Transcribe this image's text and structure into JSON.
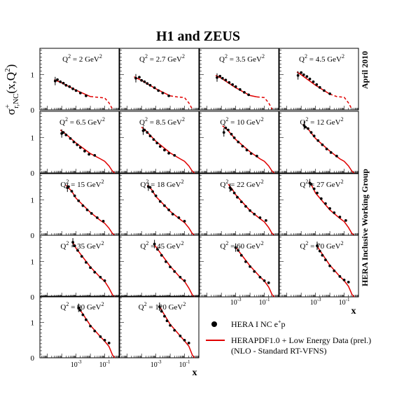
{
  "chart_data": {
    "type": "scatter",
    "title": "H1 and ZEUS",
    "ylabel_main": "σ",
    "ylabel_sup": "+",
    "ylabel_sub": "r,NC",
    "ylabel_rest": "(x,Q",
    "ylabel_exp": "2",
    "ylabel_close": ")",
    "xlabel": "x",
    "right_label_top": "April 2010",
    "right_label_bottom": "HERA Inclusive Working Group",
    "x_axis": {
      "scale": "log",
      "range": [
        3e-06,
        1.0
      ],
      "tick_labels": [
        "10",
        "10"
      ],
      "tick_exponents": [
        "-3",
        "-1"
      ],
      "tick_values": [
        0.001,
        0.1
      ]
    },
    "y_axis": {
      "range": [
        0,
        1.75
      ],
      "tick_labels": [
        "0",
        "1"
      ]
    },
    "legend": {
      "placement": "bottom-right",
      "data_label_main": "HERA I NC e",
      "data_label_sup": "+",
      "data_label_end": "p",
      "fit_label_line1": "HERAPDF1.0 + Low Energy Data (prel.)",
      "fit_label_line2": "(NLO  -  Standard RT-VFNS)"
    },
    "colors": {
      "fit": "#e00000",
      "data": "#000000",
      "frame": "#000000"
    },
    "panel_label_prefix": "Q",
    "panel_label_exp": "2",
    "panel_label_eq": " = ",
    "panel_unit": " GeV",
    "panel_unit_exp": "2",
    "panels": [
      {
        "q2": "2",
        "data": [
          [
            3.5e-05,
            0.82
          ],
          [
            5e-05,
            0.86
          ],
          [
            8e-05,
            0.8
          ],
          [
            0.00013,
            0.76
          ],
          [
            0.0002,
            0.7
          ],
          [
            0.00035,
            0.66
          ],
          [
            0.0006,
            0.6
          ],
          [
            0.001,
            0.55
          ],
          [
            0.002,
            0.48
          ],
          [
            0.005,
            0.4
          ]
        ],
        "fit_x": [
          3e-05,
          0.0001,
          0.001,
          0.01,
          0.03,
          0.1,
          0.2,
          0.35
        ],
        "fit_y": [
          0.86,
          0.77,
          0.56,
          0.38,
          0.36,
          0.34,
          0.2,
          0.02
        ],
        "fit_solid_to": 0.01
      },
      {
        "q2": "2.7",
        "data": [
          [
            4e-05,
            0.9
          ],
          [
            7e-05,
            0.93
          ],
          [
            0.0001,
            0.84
          ],
          [
            0.00016,
            0.8
          ],
          [
            0.00025,
            0.75
          ],
          [
            0.0004,
            0.7
          ],
          [
            0.0008,
            0.63
          ],
          [
            0.0015,
            0.55
          ],
          [
            0.003,
            0.48
          ],
          [
            0.008,
            0.4
          ]
        ],
        "fit_x": [
          3e-05,
          0.0001,
          0.001,
          0.01,
          0.03,
          0.1,
          0.2,
          0.35
        ],
        "fit_y": [
          0.94,
          0.84,
          0.6,
          0.4,
          0.37,
          0.35,
          0.2,
          0.02
        ],
        "fit_solid_to": 0.01
      },
      {
        "q2": "3.5",
        "data": [
          [
            5e-05,
            0.92
          ],
          [
            8e-05,
            0.96
          ],
          [
            0.00012,
            0.9
          ],
          [
            0.0002,
            0.85
          ],
          [
            0.00035,
            0.78
          ],
          [
            0.0006,
            0.72
          ],
          [
            0.001,
            0.66
          ],
          [
            0.002,
            0.58
          ],
          [
            0.004,
            0.5
          ],
          [
            0.008,
            0.43
          ]
        ],
        "fit_x": [
          4e-05,
          0.0001,
          0.001,
          0.01,
          0.03,
          0.1,
          0.2,
          0.35
        ],
        "fit_y": [
          0.98,
          0.9,
          0.63,
          0.41,
          0.37,
          0.35,
          0.2,
          0.02
        ],
        "fit_solid_to": 0.03
      },
      {
        "q2": "4.5",
        "data": [
          [
            6e-05,
            0.98
          ],
          [
            0.0001,
            1.06
          ],
          [
            0.00015,
            1.0
          ],
          [
            0.00025,
            0.95
          ],
          [
            0.0004,
            0.88
          ],
          [
            0.0007,
            0.8
          ],
          [
            0.0012,
            0.72
          ],
          [
            0.002,
            0.64
          ],
          [
            0.004,
            0.55
          ],
          [
            0.01,
            0.46
          ]
        ],
        "fit_x": [
          5e-05,
          0.0001,
          0.001,
          0.01,
          0.03,
          0.1,
          0.2,
          0.35
        ],
        "fit_y": [
          1.08,
          1.0,
          0.7,
          0.45,
          0.38,
          0.36,
          0.2,
          0.02
        ],
        "fit_solid_to": 0.01
      },
      {
        "q2": "6.5",
        "data": [
          [
            0.0001,
            1.12
          ],
          [
            0.00013,
            1.15
          ],
          [
            0.0002,
            1.08
          ],
          [
            0.0004,
            0.98
          ],
          [
            0.0007,
            0.88
          ],
          [
            0.0012,
            0.8
          ],
          [
            0.002,
            0.72
          ],
          [
            0.004,
            0.62
          ],
          [
            0.008,
            0.53
          ],
          [
            0.02,
            0.5
          ]
        ],
        "fit_x": [
          8e-05,
          0.0002,
          0.001,
          0.01,
          0.05,
          0.1,
          0.2,
          0.35,
          0.5
        ],
        "fit_y": [
          1.22,
          1.1,
          0.85,
          0.55,
          0.4,
          0.33,
          0.2,
          0.05,
          0.0
        ]
      },
      {
        "q2": "8.5",
        "data": [
          [
            0.00013,
            1.2
          ],
          [
            0.00016,
            1.22
          ],
          [
            0.00025,
            1.15
          ],
          [
            0.0004,
            1.05
          ],
          [
            0.0007,
            0.95
          ],
          [
            0.0012,
            0.85
          ],
          [
            0.002,
            0.75
          ],
          [
            0.004,
            0.65
          ],
          [
            0.008,
            0.56
          ],
          [
            0.02,
            0.5
          ]
        ],
        "fit_x": [
          0.0001,
          0.0002,
          0.001,
          0.01,
          0.05,
          0.1,
          0.2,
          0.35,
          0.5
        ],
        "fit_y": [
          1.3,
          1.2,
          0.9,
          0.57,
          0.4,
          0.33,
          0.2,
          0.05,
          0.0
        ]
      },
      {
        "q2": "10",
        "data": [
          [
            0.00015,
            1.15
          ],
          [
            0.0002,
            1.28
          ],
          [
            0.0003,
            1.22
          ],
          [
            0.0005,
            1.1
          ],
          [
            0.0008,
            1.0
          ],
          [
            0.0015,
            0.88
          ],
          [
            0.003,
            0.76
          ],
          [
            0.006,
            0.65
          ],
          [
            0.012,
            0.55
          ],
          [
            0.03,
            0.48
          ]
        ],
        "fit_x": [
          0.00012,
          0.0003,
          0.001,
          0.01,
          0.05,
          0.1,
          0.2,
          0.35,
          0.5
        ],
        "fit_y": [
          1.34,
          1.2,
          0.95,
          0.6,
          0.4,
          0.33,
          0.2,
          0.05,
          0.0
        ]
      },
      {
        "q2": "12",
        "data": [
          [
            0.00016,
            1.35
          ],
          [
            0.0002,
            1.3
          ],
          [
            0.0003,
            1.26
          ],
          [
            0.0005,
            1.15
          ],
          [
            0.0008,
            1.05
          ],
          [
            0.0015,
            0.92
          ],
          [
            0.003,
            0.8
          ],
          [
            0.006,
            0.68
          ],
          [
            0.012,
            0.58
          ],
          [
            0.03,
            0.48
          ]
        ],
        "fit_x": [
          0.00013,
          0.0003,
          0.001,
          0.01,
          0.05,
          0.1,
          0.2,
          0.35,
          0.5
        ],
        "fit_y": [
          1.38,
          1.25,
          0.98,
          0.62,
          0.4,
          0.33,
          0.2,
          0.05,
          0.0
        ]
      },
      {
        "q2": "15",
        "data": [
          [
            0.00025,
            1.35
          ],
          [
            0.0003,
            1.38
          ],
          [
            0.0005,
            1.25
          ],
          [
            0.0008,
            1.12
          ],
          [
            0.0015,
            0.98
          ],
          [
            0.003,
            0.84
          ],
          [
            0.006,
            0.72
          ],
          [
            0.012,
            0.62
          ],
          [
            0.03,
            0.5
          ],
          [
            0.08,
            0.4
          ]
        ],
        "fit_x": [
          0.0002,
          0.0005,
          0.001,
          0.01,
          0.05,
          0.1,
          0.2,
          0.35,
          0.5
        ],
        "fit_y": [
          1.42,
          1.25,
          1.05,
          0.65,
          0.42,
          0.34,
          0.2,
          0.05,
          0.0
        ]
      },
      {
        "q2": "18",
        "data": [
          [
            0.0003,
            1.38
          ],
          [
            0.0004,
            1.36
          ],
          [
            0.0006,
            1.24
          ],
          [
            0.001,
            1.12
          ],
          [
            0.002,
            0.96
          ],
          [
            0.004,
            0.84
          ],
          [
            0.008,
            0.72
          ],
          [
            0.015,
            0.6
          ],
          [
            0.04,
            0.5
          ],
          [
            0.1,
            0.4
          ]
        ],
        "fit_x": [
          0.00025,
          0.0005,
          0.001,
          0.01,
          0.05,
          0.1,
          0.2,
          0.35,
          0.5
        ],
        "fit_y": [
          1.42,
          1.3,
          1.1,
          0.68,
          0.45,
          0.36,
          0.21,
          0.05,
          0.0
        ]
      },
      {
        "q2": "22",
        "data": [
          [
            0.0004,
            1.35
          ],
          [
            0.0005,
            1.3
          ],
          [
            0.0008,
            1.2
          ],
          [
            0.0013,
            1.08
          ],
          [
            0.0025,
            0.95
          ],
          [
            0.005,
            0.82
          ],
          [
            0.01,
            0.7
          ],
          [
            0.02,
            0.6
          ],
          [
            0.05,
            0.5
          ],
          [
            0.13,
            0.42
          ]
        ],
        "fit_x": [
          0.0003,
          0.0006,
          0.001,
          0.01,
          0.05,
          0.1,
          0.2,
          0.35,
          0.5
        ],
        "fit_y": [
          1.45,
          1.3,
          1.15,
          0.7,
          0.47,
          0.38,
          0.22,
          0.05,
          0.0
        ]
      },
      {
        "q2": "27",
        "data": [
          [
            0.0004,
            1.48
          ],
          [
            0.0005,
            1.45
          ],
          [
            0.0008,
            1.32
          ],
          [
            0.0013,
            1.2
          ],
          [
            0.0025,
            1.04
          ],
          [
            0.005,
            0.9
          ],
          [
            0.01,
            0.76
          ],
          [
            0.02,
            0.64
          ],
          [
            0.05,
            0.52
          ],
          [
            0.13,
            0.42
          ]
        ],
        "fit_x": [
          0.00035,
          0.0006,
          0.001,
          0.01,
          0.05,
          0.1,
          0.2,
          0.35,
          0.5
        ],
        "fit_y": [
          1.52,
          1.38,
          1.2,
          0.72,
          0.48,
          0.39,
          0.22,
          0.05,
          0.0
        ]
      },
      {
        "q2": "35",
        "data": [
          [
            0.0006,
            1.55
          ],
          [
            0.0008,
            1.45
          ],
          [
            0.0013,
            1.32
          ],
          [
            0.0025,
            1.15
          ],
          [
            0.005,
            0.98
          ],
          [
            0.01,
            0.83
          ],
          [
            0.02,
            0.7
          ],
          [
            0.05,
            0.56
          ],
          [
            0.1,
            0.46
          ]
        ],
        "fit_x": [
          0.00055,
          0.001,
          0.01,
          0.05,
          0.1,
          0.2,
          0.35,
          0.5
        ],
        "fit_y": [
          1.58,
          1.38,
          0.85,
          0.55,
          0.44,
          0.25,
          0.06,
          0.0
        ]
      },
      {
        "q2": "45",
        "data": [
          [
            0.0008,
            1.5
          ],
          [
            0.0013,
            1.35
          ],
          [
            0.0025,
            1.18
          ],
          [
            0.005,
            1.0
          ],
          [
            0.01,
            0.85
          ],
          [
            0.02,
            0.72
          ],
          [
            0.05,
            0.56
          ],
          [
            0.1,
            0.46
          ]
        ],
        "fit_x": [
          0.0007,
          0.001,
          0.01,
          0.05,
          0.1,
          0.2,
          0.35,
          0.5
        ],
        "fit_y": [
          1.52,
          1.42,
          0.87,
          0.55,
          0.44,
          0.25,
          0.06,
          0.0
        ]
      },
      {
        "q2": "60",
        "data": [
          [
            0.001,
            1.4
          ],
          [
            0.0015,
            1.32
          ],
          [
            0.0025,
            1.18
          ],
          [
            0.005,
            1.0
          ],
          [
            0.01,
            0.86
          ],
          [
            0.02,
            0.72
          ],
          [
            0.05,
            0.56
          ],
          [
            0.1,
            0.46
          ],
          [
            0.2,
            0.4
          ]
        ],
        "fit_x": [
          0.001,
          0.002,
          0.01,
          0.05,
          0.1,
          0.2,
          0.35,
          0.5
        ],
        "fit_y": [
          1.42,
          1.25,
          0.88,
          0.57,
          0.45,
          0.28,
          0.06,
          0.0
        ]
      },
      {
        "q2": "70",
        "data": [
          [
            0.0013,
            1.45
          ],
          [
            0.002,
            1.3
          ],
          [
            0.003,
            1.18
          ],
          [
            0.005,
            1.05
          ],
          [
            0.01,
            0.88
          ],
          [
            0.02,
            0.74
          ],
          [
            0.05,
            0.58
          ],
          [
            0.1,
            0.48
          ],
          [
            0.2,
            0.42
          ]
        ],
        "fit_x": [
          0.0012,
          0.002,
          0.01,
          0.05,
          0.1,
          0.2,
          0.35,
          0.5
        ],
        "fit_y": [
          1.46,
          1.32,
          0.9,
          0.58,
          0.46,
          0.3,
          0.07,
          0.0
        ]
      },
      {
        "q2": "90",
        "data": [
          [
            0.0015,
            1.42
          ],
          [
            0.002,
            1.35
          ],
          [
            0.003,
            1.22
          ],
          [
            0.005,
            1.08
          ],
          [
            0.01,
            0.9
          ],
          [
            0.02,
            0.76
          ],
          [
            0.05,
            0.6
          ],
          [
            0.1,
            0.5
          ],
          [
            0.2,
            0.42
          ]
        ],
        "fit_x": [
          0.0014,
          0.002,
          0.01,
          0.05,
          0.1,
          0.2,
          0.35,
          0.5
        ],
        "fit_y": [
          1.45,
          1.35,
          0.92,
          0.6,
          0.47,
          0.32,
          0.08,
          0.0
        ]
      },
      {
        "q2": "120",
        "data": [
          [
            0.0018,
            1.45
          ],
          [
            0.0025,
            1.32
          ],
          [
            0.004,
            1.18
          ],
          [
            0.006,
            1.05
          ],
          [
            0.01,
            0.92
          ],
          [
            0.02,
            0.78
          ],
          [
            0.05,
            0.62
          ],
          [
            0.1,
            0.5
          ],
          [
            0.2,
            0.42
          ]
        ],
        "fit_x": [
          0.0017,
          0.003,
          0.01,
          0.05,
          0.1,
          0.2,
          0.35,
          0.5
        ],
        "fit_y": [
          1.48,
          1.3,
          0.95,
          0.62,
          0.48,
          0.33,
          0.08,
          0.0
        ]
      }
    ]
  }
}
